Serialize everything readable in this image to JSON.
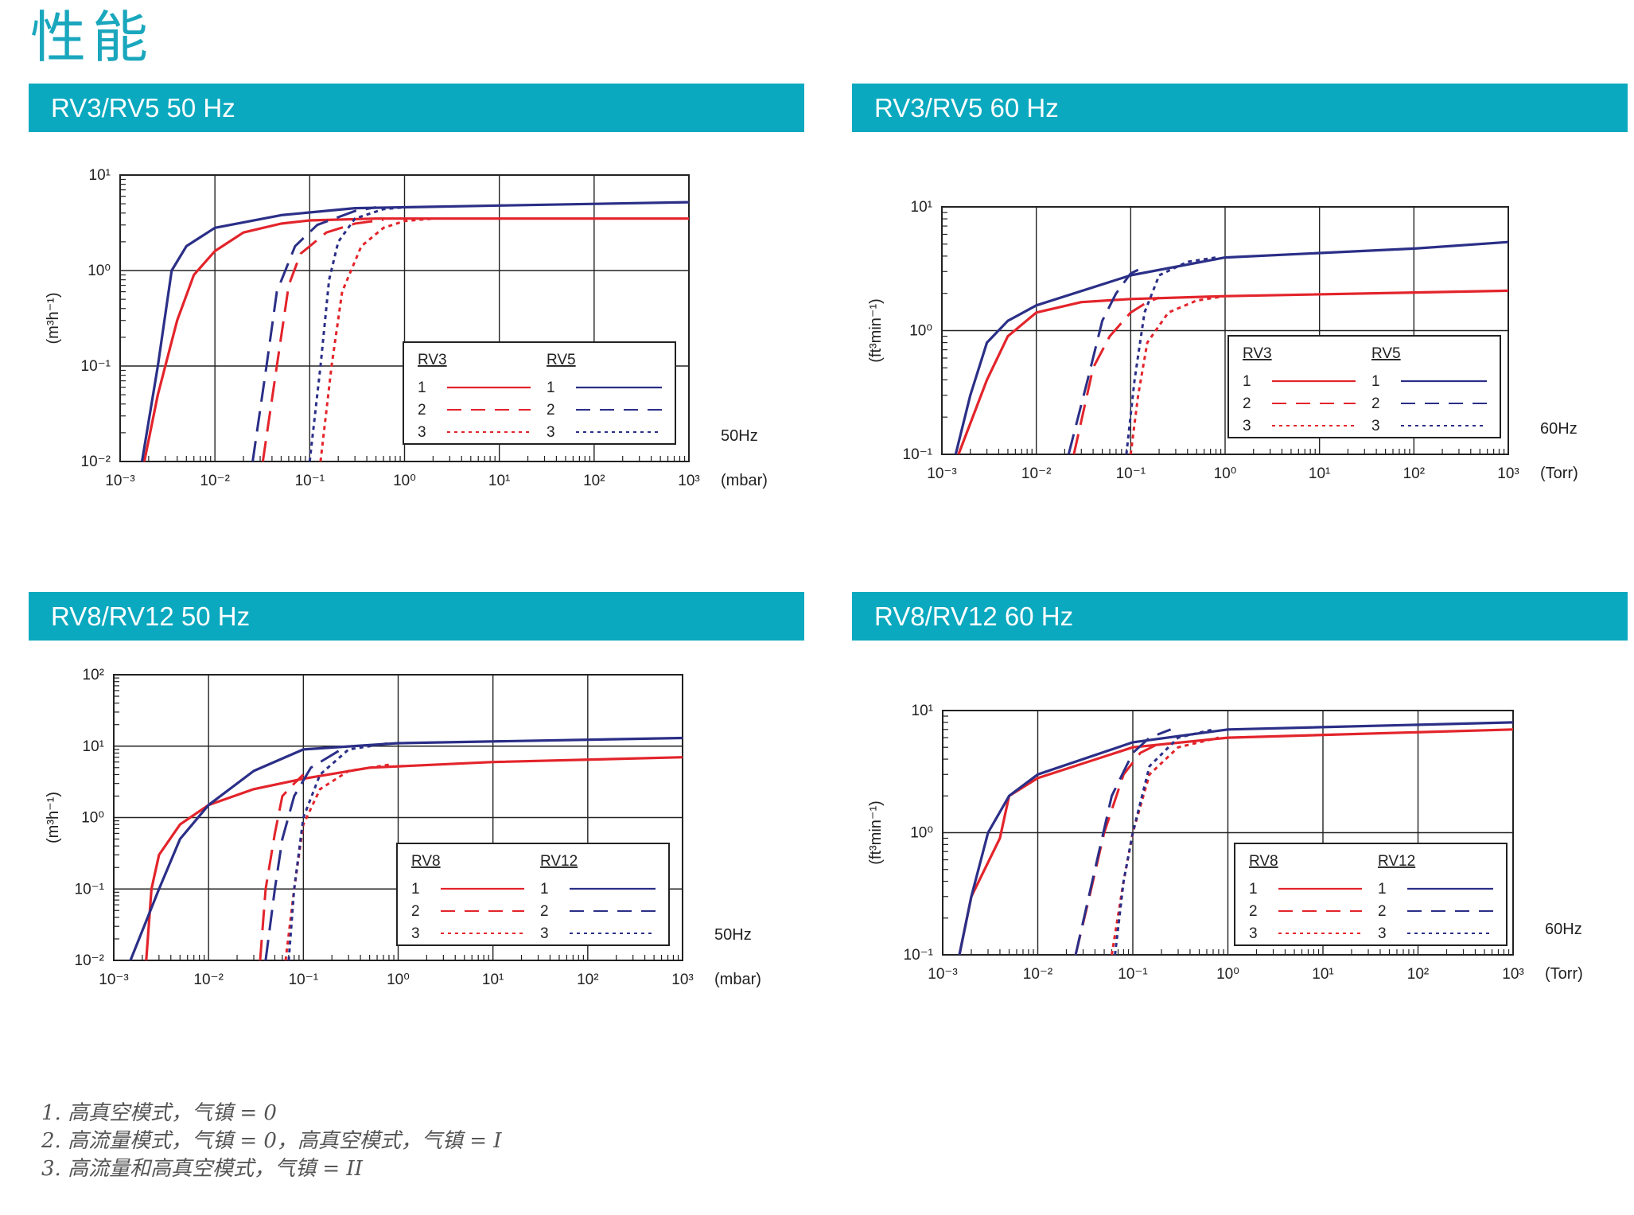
{
  "page": {
    "title": "性能"
  },
  "notes": [
    "1. 高真空模式，气镇 = 0",
    "2. 高流量模式，气镇 = 0，高真空模式，气镇 = I",
    "3. 高流量和高真空模式，气镇 = II"
  ],
  "colors": {
    "header": "#0aa9bf",
    "title": "#1aa7bd",
    "red": "#e3242b",
    "blue": "#2b2f87"
  },
  "chart_data": [
    {
      "type": "line",
      "title": "RV3/RV5 50 Hz",
      "xlabel": "(mbar)",
      "ylabel": "(m³h⁻¹)",
      "x_scale": "log",
      "y_scale": "log",
      "xlim": [
        -3,
        3
      ],
      "ylim": [
        -2,
        1
      ],
      "x_ticks": [
        "10⁻³",
        "10⁻²",
        "10⁻¹",
        "10⁰",
        "10¹",
        "10²",
        "10³"
      ],
      "y_ticks": [
        "10⁻²",
        "10⁻¹",
        "10⁰",
        "10¹"
      ],
      "freq_label": "50Hz",
      "legend": {
        "position": "lower-right",
        "left_header": "RV3",
        "right_header": "RV5",
        "labels": [
          "1",
          "2",
          "3"
        ]
      },
      "series": [
        {
          "name": "RV3 1",
          "model": "RV3",
          "curve": 1,
          "color": "#e3242b",
          "style": "solid",
          "points": [
            [
              0.0018,
              0.01
            ],
            [
              0.0025,
              0.05
            ],
            [
              0.004,
              0.3
            ],
            [
              0.006,
              0.9
            ],
            [
              0.01,
              1.6
            ],
            [
              0.02,
              2.5
            ],
            [
              0.05,
              3.1
            ],
            [
              0.1,
              3.35
            ],
            [
              0.5,
              3.5
            ],
            [
              1000,
              3.5
            ]
          ]
        },
        {
          "name": "RV3 2",
          "model": "RV3",
          "curve": 2,
          "color": "#e3242b",
          "style": "dash",
          "points": [
            [
              0.032,
              0.01
            ],
            [
              0.045,
              0.1
            ],
            [
              0.06,
              0.7
            ],
            [
              0.08,
              1.5
            ],
            [
              0.15,
              2.5
            ],
            [
              0.3,
              3.1
            ],
            [
              0.6,
              3.4
            ]
          ]
        },
        {
          "name": "RV3 3",
          "model": "RV3",
          "curve": 3,
          "color": "#e3242b",
          "style": "dot",
          "points": [
            [
              0.13,
              0.01
            ],
            [
              0.17,
              0.1
            ],
            [
              0.22,
              0.6
            ],
            [
              0.35,
              1.8
            ],
            [
              0.6,
              2.8
            ],
            [
              1.0,
              3.3
            ],
            [
              2.0,
              3.5
            ]
          ]
        },
        {
          "name": "RV5 1",
          "model": "RV5",
          "curve": 1,
          "color": "#2b2f87",
          "style": "solid",
          "points": [
            [
              0.0017,
              0.01
            ],
            [
              0.0025,
              0.1
            ],
            [
              0.0035,
              1.0
            ],
            [
              0.005,
              1.8
            ],
            [
              0.01,
              2.8
            ],
            [
              0.05,
              3.8
            ],
            [
              0.3,
              4.5
            ],
            [
              10,
              4.8
            ],
            [
              1000,
              5.2
            ]
          ]
        },
        {
          "name": "RV5 2",
          "model": "RV5",
          "curve": 2,
          "color": "#2b2f87",
          "style": "dash",
          "points": [
            [
              0.025,
              0.01
            ],
            [
              0.035,
              0.1
            ],
            [
              0.045,
              0.6
            ],
            [
              0.07,
              1.8
            ],
            [
              0.12,
              3.0
            ],
            [
              0.3,
              4.2
            ],
            [
              0.5,
              4.6
            ]
          ]
        },
        {
          "name": "RV5 3",
          "model": "RV5",
          "curve": 3,
          "color": "#2b2f87",
          "style": "dot",
          "points": [
            [
              0.1,
              0.01
            ],
            [
              0.13,
              0.1
            ],
            [
              0.16,
              0.8
            ],
            [
              0.2,
              2.0
            ],
            [
              0.3,
              3.5
            ],
            [
              0.6,
              4.4
            ],
            [
              1.0,
              4.6
            ]
          ]
        }
      ]
    },
    {
      "type": "line",
      "title": "RV3/RV5 60 Hz",
      "xlabel": "(Torr)",
      "ylabel": "(ft³min⁻¹)",
      "x_scale": "log",
      "y_scale": "log",
      "xlim": [
        -3,
        3
      ],
      "ylim": [
        -1,
        1
      ],
      "x_ticks": [
        "10⁻³",
        "10⁻²",
        "10⁻¹",
        "10⁰",
        "10¹",
        "10²",
        "10³"
      ],
      "y_ticks": [
        "10⁻¹",
        "10⁰",
        "10¹"
      ],
      "freq_label": "60Hz",
      "legend": {
        "position": "lower-right",
        "left_header": "RV3",
        "right_header": "RV5",
        "labels": [
          "1",
          "2",
          "3"
        ]
      },
      "series": [
        {
          "name": "RV3 1",
          "model": "RV3",
          "curve": 1,
          "color": "#e3242b",
          "style": "solid",
          "points": [
            [
              0.0015,
              0.1
            ],
            [
              0.003,
              0.4
            ],
            [
              0.005,
              0.9
            ],
            [
              0.01,
              1.4
            ],
            [
              0.03,
              1.7
            ],
            [
              0.1,
              1.8
            ],
            [
              1,
              1.9
            ],
            [
              1000,
              2.1
            ]
          ]
        },
        {
          "name": "RV3 2",
          "model": "RV3",
          "curve": 2,
          "color": "#e3242b",
          "style": "dash",
          "points": [
            [
              0.025,
              0.1
            ],
            [
              0.04,
              0.5
            ],
            [
              0.06,
              0.9
            ],
            [
              0.1,
              1.4
            ],
            [
              0.15,
              1.7
            ],
            [
              0.2,
              1.85
            ]
          ]
        },
        {
          "name": "RV3 3",
          "model": "RV3",
          "curve": 3,
          "color": "#e3242b",
          "style": "dot",
          "points": [
            [
              0.1,
              0.1
            ],
            [
              0.12,
              0.3
            ],
            [
              0.15,
              0.8
            ],
            [
              0.25,
              1.4
            ],
            [
              0.5,
              1.75
            ],
            [
              1,
              1.9
            ]
          ]
        },
        {
          "name": "RV5 1",
          "model": "RV5",
          "curve": 1,
          "color": "#2b2f87",
          "style": "solid",
          "points": [
            [
              0.0014,
              0.1
            ],
            [
              0.002,
              0.3
            ],
            [
              0.003,
              0.8
            ],
            [
              0.005,
              1.2
            ],
            [
              0.01,
              1.6
            ],
            [
              0.1,
              2.8
            ],
            [
              1,
              3.9
            ],
            [
              100,
              4.6
            ],
            [
              1000,
              5.2
            ]
          ]
        },
        {
          "name": "RV5 2",
          "model": "RV5",
          "curve": 2,
          "color": "#2b2f87",
          "style": "dash",
          "points": [
            [
              0.022,
              0.1
            ],
            [
              0.035,
              0.4
            ],
            [
              0.05,
              1.2
            ],
            [
              0.07,
              2.0
            ],
            [
              0.1,
              2.9
            ],
            [
              0.12,
              3.1
            ]
          ]
        },
        {
          "name": "RV5 3",
          "model": "RV5",
          "curve": 3,
          "color": "#2b2f87",
          "style": "dot",
          "points": [
            [
              0.09,
              0.1
            ],
            [
              0.11,
              0.4
            ],
            [
              0.14,
              1.4
            ],
            [
              0.2,
              2.8
            ],
            [
              0.4,
              3.6
            ],
            [
              0.8,
              3.9
            ]
          ]
        }
      ]
    },
    {
      "type": "line",
      "title": "RV8/RV12 50 Hz",
      "xlabel": "(mbar)",
      "ylabel": "(m³h⁻¹)",
      "x_scale": "log",
      "y_scale": "log",
      "xlim": [
        -3,
        3
      ],
      "ylim": [
        -2,
        2
      ],
      "x_ticks": [
        "10⁻³",
        "10⁻²",
        "10⁻¹",
        "10⁰",
        "10¹",
        "10²",
        "10³"
      ],
      "y_ticks": [
        "10⁻²",
        "10⁻¹",
        "10⁰",
        "10¹",
        "10²"
      ],
      "freq_label": "50Hz",
      "legend": {
        "position": "lower-right",
        "left_header": "RV8",
        "right_header": "RV12",
        "labels": [
          "1",
          "2",
          "3"
        ]
      },
      "series": [
        {
          "name": "RV8 1",
          "model": "RV8",
          "curve": 1,
          "color": "#e3242b",
          "style": "solid",
          "points": [
            [
              0.0022,
              0.01
            ],
            [
              0.0025,
              0.1
            ],
            [
              0.003,
              0.3
            ],
            [
              0.005,
              0.8
            ],
            [
              0.01,
              1.5
            ],
            [
              0.03,
              2.5
            ],
            [
              0.1,
              3.5
            ],
            [
              0.5,
              5.0
            ],
            [
              10,
              6.0
            ],
            [
              1000,
              7.0
            ]
          ]
        },
        {
          "name": "RV8 2",
          "model": "RV8",
          "curve": 2,
          "color": "#e3242b",
          "style": "dash",
          "points": [
            [
              0.035,
              0.01
            ],
            [
              0.04,
              0.1
            ],
            [
              0.05,
              0.6
            ],
            [
              0.06,
              2.0
            ],
            [
              0.08,
              3.0
            ],
            [
              0.1,
              4.0
            ]
          ]
        },
        {
          "name": "RV8 3",
          "model": "RV8",
          "curve": 3,
          "color": "#e3242b",
          "style": "dot",
          "points": [
            [
              0.065,
              0.01
            ],
            [
              0.08,
              0.1
            ],
            [
              0.1,
              0.8
            ],
            [
              0.15,
              2.5
            ],
            [
              0.3,
              4.5
            ],
            [
              0.8,
              5.5
            ]
          ]
        },
        {
          "name": "RV12 1",
          "model": "RV12",
          "curve": 1,
          "color": "#2b2f87",
          "style": "solid",
          "points": [
            [
              0.0015,
              0.01
            ],
            [
              0.003,
              0.1
            ],
            [
              0.005,
              0.5
            ],
            [
              0.01,
              1.5
            ],
            [
              0.03,
              4.5
            ],
            [
              0.1,
              9.0
            ],
            [
              1,
              11.0
            ],
            [
              1000,
              13.0
            ]
          ]
        },
        {
          "name": "RV12 2",
          "model": "RV12",
          "curve": 2,
          "color": "#2b2f87",
          "style": "dash",
          "points": [
            [
              0.04,
              0.01
            ],
            [
              0.05,
              0.1
            ],
            [
              0.06,
              0.5
            ],
            [
              0.08,
              2.0
            ],
            [
              0.12,
              5.0
            ],
            [
              0.25,
              9.0
            ]
          ]
        },
        {
          "name": "RV12 3",
          "model": "RV12",
          "curve": 3,
          "color": "#2b2f87",
          "style": "dot",
          "points": [
            [
              0.07,
              0.01
            ],
            [
              0.08,
              0.1
            ],
            [
              0.1,
              1.0
            ],
            [
              0.15,
              4.0
            ],
            [
              0.3,
              9.0
            ],
            [
              0.8,
              11.0
            ]
          ]
        }
      ]
    },
    {
      "type": "line",
      "title": "RV8/RV12 60 Hz",
      "xlabel": "(Torr)",
      "ylabel": "(ft³min⁻¹)",
      "x_scale": "log",
      "y_scale": "log",
      "xlim": [
        -3,
        3
      ],
      "ylim": [
        -1,
        1
      ],
      "x_ticks": [
        "10⁻³",
        "10⁻²",
        "10⁻¹",
        "10⁰",
        "10¹",
        "10²",
        "10³"
      ],
      "y_ticks": [
        "10⁻¹",
        "10⁰",
        "10¹"
      ],
      "freq_label": "60Hz",
      "legend": {
        "position": "lower-right",
        "left_header": "RV8",
        "right_header": "RV12",
        "labels": [
          "1",
          "2",
          "3"
        ]
      },
      "series": [
        {
          "name": "RV8 1",
          "model": "RV8",
          "curve": 1,
          "color": "#e3242b",
          "style": "solid",
          "points": [
            [
              0.0015,
              0.1
            ],
            [
              0.002,
              0.3
            ],
            [
              0.004,
              0.9
            ],
            [
              0.005,
              2.0
            ],
            [
              0.01,
              2.8
            ],
            [
              0.1,
              5.0
            ],
            [
              1,
              6.0
            ],
            [
              1000,
              7.0
            ]
          ]
        },
        {
          "name": "RV8 2",
          "model": "RV8",
          "curve": 2,
          "color": "#e3242b",
          "style": "dash",
          "points": [
            [
              0.025,
              0.1
            ],
            [
              0.035,
              0.3
            ],
            [
              0.05,
              1.0
            ],
            [
              0.08,
              3.0
            ],
            [
              0.12,
              4.5
            ],
            [
              0.2,
              5.5
            ]
          ]
        },
        {
          "name": "RV8 3",
          "model": "RV8",
          "curve": 3,
          "color": "#e3242b",
          "style": "dot",
          "points": [
            [
              0.06,
              0.1
            ],
            [
              0.08,
              0.4
            ],
            [
              0.1,
              1.0
            ],
            [
              0.15,
              3.0
            ],
            [
              0.3,
              5.0
            ],
            [
              0.8,
              6.0
            ]
          ]
        },
        {
          "name": "RV12 1",
          "model": "RV12",
          "curve": 1,
          "color": "#2b2f87",
          "style": "solid",
          "points": [
            [
              0.0015,
              0.1
            ],
            [
              0.002,
              0.3
            ],
            [
              0.003,
              1.0
            ],
            [
              0.005,
              2.0
            ],
            [
              0.01,
              3.0
            ],
            [
              0.1,
              5.5
            ],
            [
              1,
              7.0
            ],
            [
              1000,
              8.0
            ]
          ]
        },
        {
          "name": "RV12 2",
          "model": "RV12",
          "curve": 2,
          "color": "#2b2f87",
          "style": "dash",
          "points": [
            [
              0.025,
              0.1
            ],
            [
              0.04,
              0.5
            ],
            [
              0.06,
              2.0
            ],
            [
              0.1,
              4.5
            ],
            [
              0.15,
              6.0
            ],
            [
              0.25,
              7.0
            ]
          ]
        },
        {
          "name": "RV12 3",
          "model": "RV12",
          "curve": 3,
          "color": "#2b2f87",
          "style": "dot",
          "points": [
            [
              0.065,
              0.1
            ],
            [
              0.08,
              0.4
            ],
            [
              0.1,
              1.0
            ],
            [
              0.15,
              3.5
            ],
            [
              0.3,
              6.0
            ],
            [
              0.7,
              7.0
            ]
          ]
        }
      ]
    }
  ]
}
